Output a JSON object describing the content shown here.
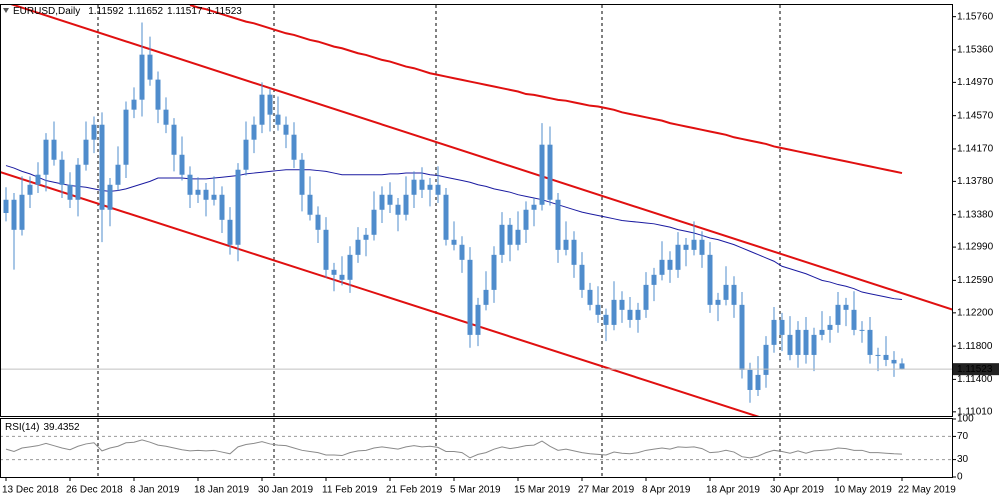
{
  "chart_data": {
    "type": "candlestick",
    "title": "EURUSD,Daily",
    "color": "#4f8ccc",
    "categories": [
      "13 Dec 2018",
      null,
      null,
      null,
      null,
      null,
      null,
      null,
      "26 Dec 2018",
      null,
      null,
      null,
      null,
      null,
      null,
      null,
      "8 Jan 2019",
      null,
      null,
      null,
      null,
      null,
      null,
      null,
      "18 Jan 2019",
      null,
      null,
      null,
      null,
      null,
      null,
      null,
      "30 Jan 2019",
      null,
      null,
      null,
      null,
      null,
      null,
      null,
      "11 Feb 2019",
      null,
      null,
      null,
      null,
      null,
      null,
      null,
      "21 Feb 2019",
      null,
      null,
      null,
      null,
      null,
      null,
      null,
      "5 Mar 2019",
      null,
      null,
      null,
      null,
      null,
      null,
      null,
      "15 Mar 2019",
      null,
      null,
      null,
      null,
      null,
      null,
      null,
      "27 Mar 2019",
      null,
      null,
      null,
      null,
      null,
      null,
      null,
      "8 Apr 2019",
      null,
      null,
      null,
      null,
      null,
      null,
      null,
      "18 Apr 2019",
      null,
      null,
      null,
      null,
      null,
      null,
      null,
      "30 Apr 2019",
      null,
      null,
      null,
      null,
      null,
      null,
      null,
      "10 May 2019",
      null,
      null,
      null,
      null,
      null,
      null,
      null,
      "22 May 2019"
    ],
    "open": [
      1.134,
      1.13559,
      1.13198,
      1.13619,
      1.13739,
      1.1386,
      1.14281,
      1.1404,
      1.13739,
      1.13559,
      1.1398,
      1.14281,
      1.14461,
      1.13439,
      1.13739,
      1.1398,
      1.14642,
      1.14762,
      1.15303,
      1.15003,
      1.14642,
      1.14461,
      1.141,
      1.1386,
      1.13619,
      1.13679,
      1.13559,
      1.13619,
      1.13318,
      1.13018,
      1.1392,
      1.14281,
      1.14461,
      1.14822,
      1.14582,
      1.14461,
      1.14341,
      1.1404,
      1.13619,
      1.13379,
      1.13198,
      1.12717,
      1.12657,
      1.12597,
      1.12897,
      1.13078,
      1.13138,
      1.13439,
      1.13619,
      1.13499,
      1.13379,
      1.13619,
      1.138,
      1.13679,
      1.13739,
      1.13619,
      1.13078,
      1.13018,
      1.12837,
      1.11935,
      1.12296,
      1.12476,
      1.12897,
      1.13258,
      1.13018,
      1.13198,
      1.13439,
      1.13499,
      1.14221,
      1.13559,
      1.12957,
      1.13078,
      1.12777,
      1.12476,
      1.12296,
      1.12176,
      1.12055,
      1.12356,
      1.12236,
      1.12115,
      1.12236,
      1.12536,
      1.12657,
      1.12837,
      1.12717,
      1.13018,
      1.12957,
      1.13078,
      1.12897,
      1.12296,
      1.12356,
      1.12536,
      1.12296,
      1.11514,
      1.11273,
      1.11454,
      1.11815,
      1.12115,
      1.11935,
      1.11694,
      1.11995,
      1.11694,
      1.11935,
      1.11995,
      1.12055,
      1.12296,
      1.12236,
      1.11995,
      1.11995,
      1.11694,
      1.11694,
      1.11634,
      1.11592
    ],
    "high": [
      1.1371,
      1.1364,
      1.1384,
      1.1384,
      1.1401,
      1.1436,
      1.145,
      1.1414,
      1.1389,
      1.1406,
      1.145,
      1.1456,
      1.1461,
      1.1382,
      1.142,
      1.1474,
      1.1491,
      1.1569,
      1.1552,
      1.151,
      1.1479,
      1.1454,
      1.1432,
      1.1396,
      1.1383,
      1.1376,
      1.1384,
      1.1372,
      1.1347,
      1.14,
      1.145,
      1.1456,
      1.1497,
      1.149,
      1.148,
      1.1456,
      1.1449,
      1.1412,
      1.1384,
      1.1348,
      1.1335,
      1.128,
      1.1288,
      1.13,
      1.1323,
      1.1322,
      1.1366,
      1.1372,
      1.1377,
      1.1358,
      1.1384,
      1.139,
      1.1395,
      1.1382,
      1.1396,
      1.137,
      1.133,
      1.1312,
      1.1299,
      1.1238,
      1.127,
      1.13,
      1.1341,
      1.1334,
      1.1342,
      1.1354,
      1.1358,
      1.1448,
      1.1444,
      1.1364,
      1.133,
      1.1318,
      1.1293,
      1.1256,
      1.1252,
      1.1225,
      1.1258,
      1.1246,
      1.1239,
      1.1232,
      1.1269,
      1.1274,
      1.1306,
      1.1294,
      1.1317,
      1.131,
      1.133,
      1.1318,
      1.1305,
      1.1244,
      1.1276,
      1.1264,
      1.1245,
      1.116,
      1.1168,
      1.1192,
      1.1227,
      1.122,
      1.1216,
      1.121,
      1.1215,
      1.1202,
      1.1222,
      1.1216,
      1.1245,
      1.1238,
      1.1246,
      1.121,
      1.1215,
      1.1178,
      1.1192,
      1.1174,
      1.11652
    ],
    "low": [
      1.133,
      1.1272,
      1.1313,
      1.1346,
      1.1364,
      1.1366,
      1.1397,
      1.1358,
      1.1346,
      1.1336,
      1.1391,
      1.1412,
      1.1305,
      1.1324,
      1.1367,
      1.1382,
      1.1454,
      1.1456,
      1.1493,
      1.1448,
      1.1436,
      1.139,
      1.1379,
      1.1346,
      1.1352,
      1.1336,
      1.1349,
      1.1316,
      1.129,
      1.1282,
      1.1385,
      1.1412,
      1.1436,
      1.1438,
      1.1439,
      1.1418,
      1.1394,
      1.1342,
      1.1331,
      1.1304,
      1.1262,
      1.1246,
      1.1253,
      1.1244,
      1.128,
      1.1288,
      1.1307,
      1.1328,
      1.134,
      1.1318,
      1.1331,
      1.1346,
      1.1358,
      1.1348,
      1.1352,
      1.1301,
      1.1295,
      1.1268,
      1.1178,
      1.118,
      1.1223,
      1.1232,
      1.128,
      1.1282,
      1.1295,
      1.1304,
      1.1324,
      1.1343,
      1.1349,
      1.128,
      1.1289,
      1.1262,
      1.1238,
      1.1223,
      1.1208,
      1.1186,
      1.1199,
      1.1208,
      1.1202,
      1.1196,
      1.1214,
      1.1234,
      1.1259,
      1.1256,
      1.1262,
      1.1276,
      1.1289,
      1.1274,
      1.122,
      1.121,
      1.1229,
      1.1214,
      1.1141,
      1.1112,
      1.112,
      1.113,
      1.1172,
      1.1174,
      1.1163,
      1.1154,
      1.1159,
      1.115,
      1.1187,
      1.1184,
      1.1196,
      1.1204,
      1.1193,
      1.1184,
      1.1159,
      1.115,
      1.1156,
      1.1143,
      1.11517
    ],
    "close": [
      1.13559,
      1.13198,
      1.13619,
      1.13739,
      1.1386,
      1.14281,
      1.1404,
      1.13739,
      1.13559,
      1.1398,
      1.14281,
      1.14461,
      1.13439,
      1.13739,
      1.1398,
      1.14642,
      1.14762,
      1.15303,
      1.15003,
      1.14642,
      1.14461,
      1.141,
      1.1386,
      1.13619,
      1.13679,
      1.13559,
      1.13619,
      1.13318,
      1.13018,
      1.1392,
      1.14281,
      1.14461,
      1.14822,
      1.14582,
      1.14461,
      1.14341,
      1.1404,
      1.13619,
      1.13379,
      1.13198,
      1.12717,
      1.12657,
      1.12597,
      1.12897,
      1.13078,
      1.13138,
      1.13439,
      1.13619,
      1.13499,
      1.13379,
      1.13619,
      1.138,
      1.13679,
      1.13739,
      1.13619,
      1.13078,
      1.13018,
      1.12837,
      1.11935,
      1.12296,
      1.12476,
      1.12897,
      1.13258,
      1.13018,
      1.13198,
      1.13439,
      1.13499,
      1.14221,
      1.13559,
      1.12957,
      1.13078,
      1.12777,
      1.12476,
      1.12296,
      1.12176,
      1.12055,
      1.12356,
      1.12236,
      1.12115,
      1.12236,
      1.12536,
      1.12657,
      1.12837,
      1.12717,
      1.13018,
      1.12957,
      1.13078,
      1.12897,
      1.12296,
      1.12356,
      1.12536,
      1.12296,
      1.11514,
      1.11273,
      1.11454,
      1.11815,
      1.12115,
      1.11935,
      1.11694,
      1.11995,
      1.11694,
      1.11935,
      1.11995,
      1.12055,
      1.12296,
      1.12236,
      1.11995,
      1.11995,
      1.11694,
      1.11694,
      1.11634,
      1.11592,
      1.11523
    ],
    "ylim": [
      1.1096,
      1.159
    ],
    "yticks": [
      {
        "value": 1.1576,
        "label": "1.15760"
      },
      {
        "value": 1.1536,
        "label": "1.15360"
      },
      {
        "value": 1.1497,
        "label": "1.14970"
      },
      {
        "value": 1.1457,
        "label": "1.14570"
      },
      {
        "value": 1.1417,
        "label": "1.14170"
      },
      {
        "value": 1.1378,
        "label": "1.13780"
      },
      {
        "value": 1.1338,
        "label": "1.13380"
      },
      {
        "value": 1.1299,
        "label": "1.12990"
      },
      {
        "value": 1.1259,
        "label": "1.12590"
      },
      {
        "value": 1.122,
        "label": "1.12200"
      },
      {
        "value": 1.118,
        "label": "1.11800"
      },
      {
        "value": 1.114,
        "label": "1.11400"
      },
      {
        "value": 1.1101,
        "label": "1.11010"
      }
    ],
    "moving_averages": [
      {
        "color": "#1a1aa0",
        "values": [
          1.1397,
          1.1394,
          1.139,
          1.1387,
          1.1383,
          1.1379,
          1.1377,
          1.1375,
          1.1373,
          1.1372,
          1.1371,
          1.1369,
          1.1367,
          1.1366,
          1.1367,
          1.1369,
          1.1372,
          1.1375,
          1.1378,
          1.1382,
          1.1382,
          1.1382,
          1.1382,
          1.1381,
          1.1381,
          1.1381,
          1.1382,
          1.1383,
          1.1384,
          1.1385,
          1.1387,
          1.1388,
          1.1389,
          1.139,
          1.1391,
          1.1392,
          1.1392,
          1.1392,
          1.1392,
          1.1391,
          1.139,
          1.1388,
          1.1386,
          1.1386,
          1.1386,
          1.1386,
          1.1386,
          1.1386,
          1.1387,
          1.1387,
          1.1388,
          1.1388,
          1.1388,
          1.1386,
          1.1385,
          1.1383,
          1.1381,
          1.1379,
          1.1377,
          1.1374,
          1.1372,
          1.1369,
          1.1367,
          1.1365,
          1.1362,
          1.136,
          1.1358,
          1.1356,
          1.1353,
          1.135,
          1.1347,
          1.1344,
          1.1341,
          1.1339,
          1.1337,
          1.1335,
          1.1333,
          1.1331,
          1.133,
          1.1329,
          1.1328,
          1.1327,
          1.1325,
          1.1323,
          1.132,
          1.1318,
          1.1316,
          1.1313,
          1.131,
          1.1308,
          1.1305,
          1.1302,
          1.1298,
          1.1294,
          1.129,
          1.1286,
          1.1282,
          1.1276,
          1.1273,
          1.127,
          1.1267,
          1.1263,
          1.1259,
          1.1257,
          1.1254,
          1.1252,
          1.1249,
          1.1245,
          1.1243,
          1.1241,
          1.1239,
          1.1237,
          1.1236
        ]
      },
      {
        "color": "#e01010",
        "values": [
          null,
          null,
          null,
          null,
          null,
          null,
          null,
          null,
          null,
          null,
          null,
          null,
          null,
          null,
          null,
          null,
          null,
          null,
          null,
          null,
          null,
          null,
          null,
          1.159,
          1.1587,
          1.1585,
          1.1582,
          1.1579,
          1.1576,
          1.1573,
          1.157,
          1.1568,
          1.1565,
          1.1562,
          1.1559,
          1.1556,
          1.1554,
          1.1551,
          1.1548,
          1.1546,
          1.1543,
          1.154,
          1.1538,
          1.1535,
          1.1532,
          1.153,
          1.1527,
          1.1524,
          1.1522,
          1.1519,
          1.1516,
          1.1514,
          1.1511,
          1.1508,
          1.1506,
          1.1504,
          1.1502,
          1.15,
          1.1498,
          1.1496,
          1.1494,
          1.1492,
          1.149,
          1.1488,
          1.1486,
          1.1483,
          1.1482,
          1.148,
          1.1478,
          1.1476,
          1.1475,
          1.1473,
          1.1471,
          1.1469,
          1.1468,
          1.1466,
          1.1464,
          1.1461,
          1.1459,
          1.1457,
          1.1455,
          1.1453,
          1.1451,
          1.1448,
          1.1446,
          1.1444,
          1.1442,
          1.144,
          1.1438,
          1.1436,
          1.1434,
          1.1431,
          1.1429,
          1.1427,
          1.1425,
          1.1423,
          1.142,
          1.1418,
          1.1416,
          1.1414,
          1.1412,
          1.141,
          1.1408,
          1.1406,
          1.1404,
          1.1402,
          1.14,
          1.1398,
          1.1396,
          1.1394,
          1.1392,
          1.139,
          1.1388
        ]
      }
    ],
    "trendlines": [
      {
        "color": "#e01010",
        "x": [
          17,
          67
        ],
        "y": [
          1.154,
          1.1384
        ]
      },
      {
        "color": "#e01010",
        "x": [
          0,
          58
        ],
        "y": [
          1.1387,
          1.1207
        ]
      }
    ],
    "indicator": {
      "name": "RSI(14)",
      "color": "#8a8a8a",
      "ylim": [
        0,
        100
      ],
      "yticks": [
        100,
        70,
        30,
        0
      ],
      "levels": [
        70,
        30
      ],
      "values": [
        48,
        44,
        50,
        52,
        54,
        58,
        54,
        50,
        47,
        53,
        57,
        59,
        45,
        50,
        53,
        59,
        60,
        64,
        60,
        55,
        53,
        50,
        47,
        45,
        46,
        45,
        46,
        43,
        40,
        52,
        56,
        58,
        61,
        57,
        55,
        54,
        50,
        46,
        44,
        42,
        38,
        38,
        37,
        42,
        45,
        46,
        50,
        52,
        50,
        48,
        52,
        54,
        52,
        53,
        51,
        44,
        44,
        42,
        33,
        39,
        42,
        48,
        52,
        49,
        51,
        54,
        55,
        62,
        53,
        46,
        48,
        45,
        42,
        40,
        39,
        38,
        43,
        41,
        40,
        42,
        46,
        48,
        50,
        48,
        52,
        51,
        52,
        49,
        42,
        43,
        46,
        43,
        35,
        33,
        36,
        42,
        46,
        44,
        41,
        45,
        41,
        45,
        46,
        47,
        50,
        49,
        46,
        46,
        42,
        42,
        41,
        40,
        39.4352
      ]
    }
  }
}
